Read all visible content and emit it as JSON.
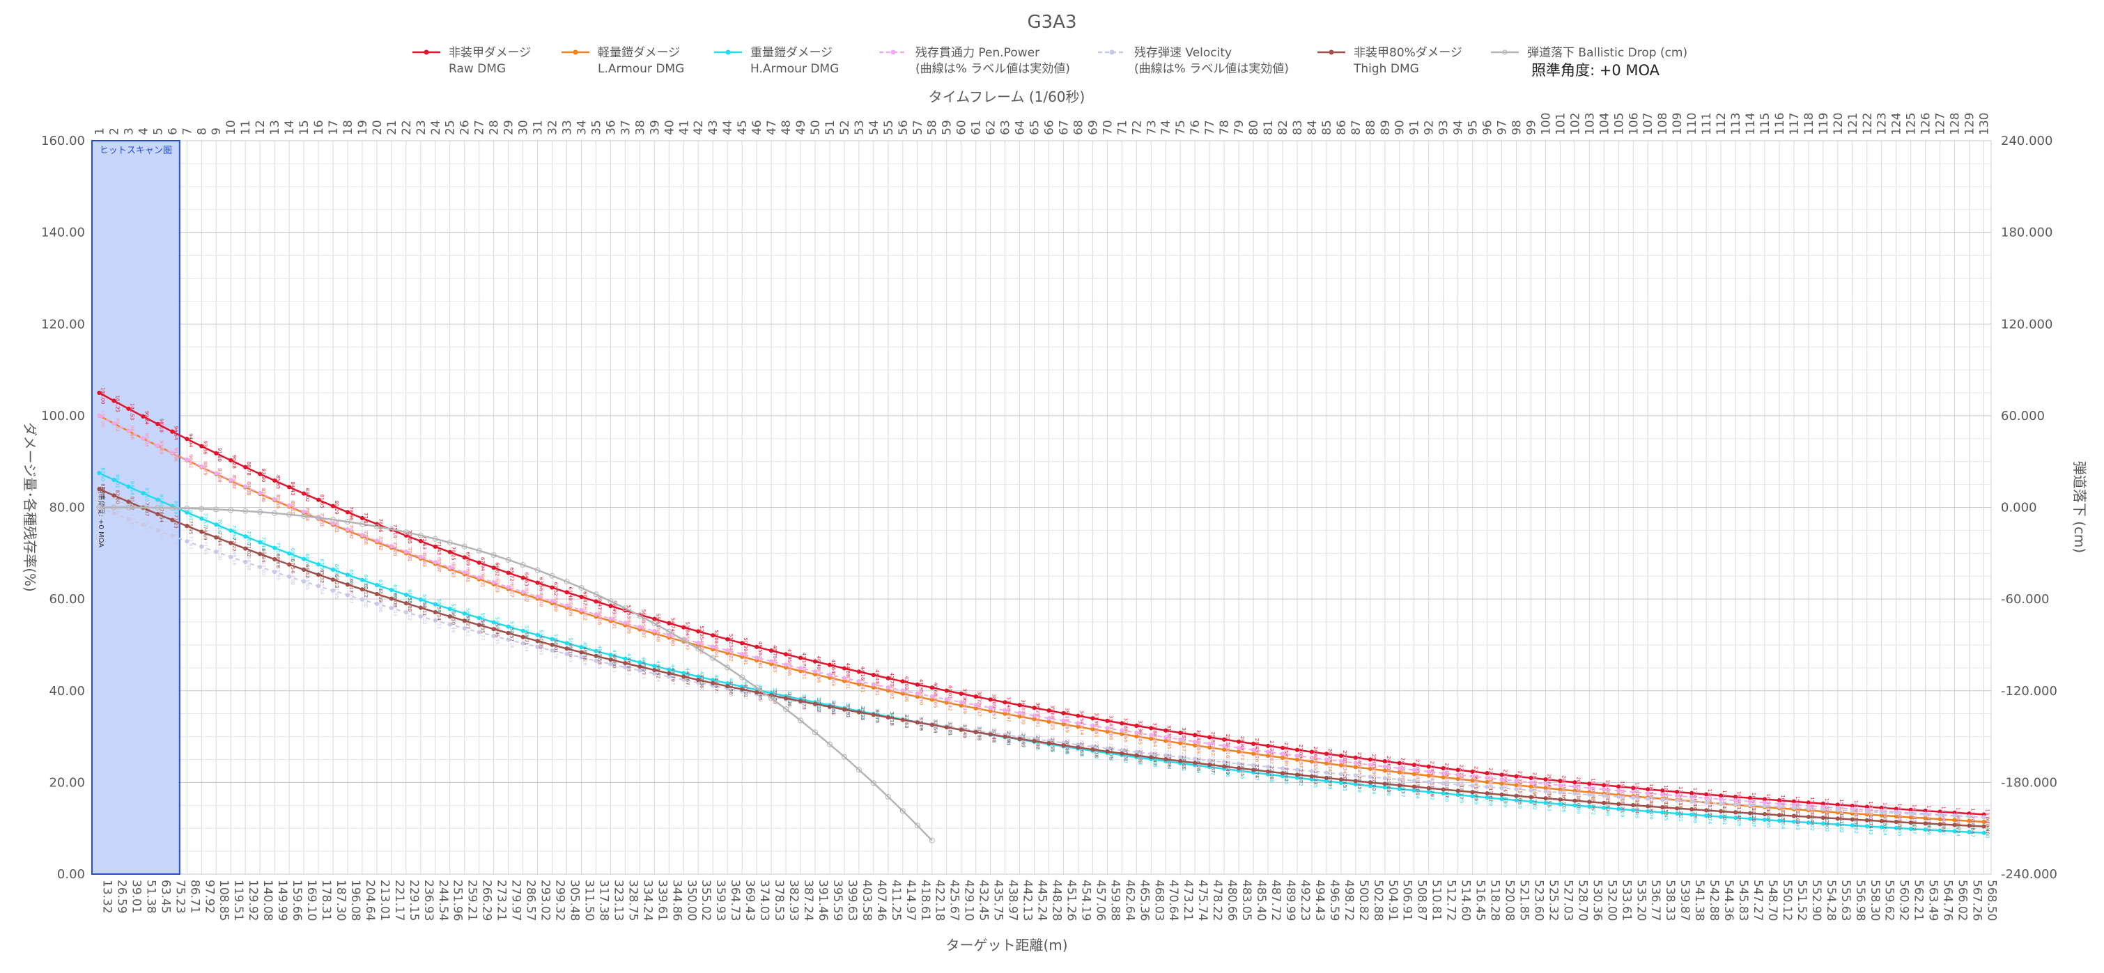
{
  "chart_data": {
    "type": "line",
    "title": "G3A3",
    "aim_text": "照準角度: +0 MOA",
    "aim_text_vertical": "照準角度: +0 MOA",
    "x_top_label": "タイムフレーム (1/60秒)",
    "x_bottom_label": "ターゲット距離(m)",
    "y_left_label": "ダメージ量･各種残存率(%)",
    "y_right_label": "弾道落下 (cm)",
    "hitscan_label": "ヒットスキャン圏",
    "hitscan_frames": [
      1,
      6
    ],
    "frames": {
      "start": 1,
      "end": 130
    },
    "distance_ticks": [
      "13.32",
      "26.59",
      "39.01",
      "51.38",
      "63.45",
      "75.23",
      "86.71",
      "97.92",
      "108.85",
      "119.51",
      "129.92",
      "140.08",
      "149.99",
      "159.66",
      "169.10",
      "178.31",
      "187.30",
      "196.08",
      "204.64",
      "213.01",
      "221.17",
      "229.15",
      "236.93",
      "244.54",
      "251.96",
      "259.21",
      "266.29",
      "273.21",
      "279.97",
      "286.57",
      "293.02",
      "299.32",
      "305.48",
      "311.50",
      "317.38",
      "323.13",
      "328.75",
      "334.24",
      "339.61",
      "344.86",
      "350.00",
      "355.02",
      "359.93",
      "364.73",
      "369.43",
      "374.03",
      "378.53",
      "382.93",
      "387.24",
      "391.46",
      "395.59",
      "399.63",
      "403.58",
      "407.46",
      "411.25",
      "414.97",
      "418.61",
      "422.18",
      "425.67",
      "429.10",
      "432.45",
      "435.75",
      "438.97",
      "442.13",
      "445.24",
      "448.28",
      "451.26",
      "454.19",
      "457.06",
      "459.88",
      "462.64",
      "465.36",
      "468.03",
      "470.64",
      "473.21",
      "475.74",
      "478.22",
      "480.66",
      "483.05",
      "485.40",
      "487.72",
      "489.99",
      "492.23",
      "494.43",
      "496.59",
      "498.72",
      "500.82",
      "502.88",
      "504.91",
      "506.91",
      "508.87",
      "510.81",
      "512.72",
      "514.60",
      "516.45",
      "518.28",
      "520.08",
      "521.85",
      "523.60",
      "525.32",
      "527.03",
      "528.70",
      "530.36",
      "532.00",
      "533.61",
      "535.20",
      "536.77",
      "538.33",
      "539.87",
      "541.38",
      "542.88",
      "544.36",
      "545.83",
      "547.27",
      "548.70",
      "550.12",
      "551.52",
      "552.90",
      "554.28",
      "555.63",
      "556.98",
      "558.30",
      "559.62",
      "560.92",
      "562.21",
      "563.49",
      "564.76",
      "566.02",
      "567.26",
      "568.50"
    ],
    "y_left": {
      "min": 0,
      "max": 160,
      "step": 20,
      "ticks": [
        "0.00",
        "20.00",
        "40.00",
        "60.00",
        "80.00",
        "100.00",
        "120.00",
        "140.00",
        "160.00"
      ]
    },
    "y_right": {
      "min": -240,
      "max": 240,
      "step": 60,
      "ticks": [
        "-240.000",
        "-180.000",
        "-120.000",
        "-60.000",
        "0.000",
        "60.000",
        "120.000",
        "180.000",
        "240.000"
      ]
    },
    "grid": true,
    "legend_position": "top",
    "series": [
      {
        "key": "raw",
        "name": "非装甲ダメージ",
        "name2": "Raw DMG",
        "color": "#e3122b",
        "start": 105.0,
        "end": 13.0
      },
      {
        "key": "light",
        "name": "軽量鎧ダメージ",
        "name2": "L.Armour DMG",
        "color": "#f0821e",
        "start": 100.0,
        "end": 11.4
      },
      {
        "key": "heavy",
        "name": "重量鎧ダメージ",
        "name2": "H.Armour DMG",
        "color": "#21dcef",
        "start": 87.5,
        "end": 9.0
      },
      {
        "key": "pen",
        "name": "残存貫通力 Pen.Power",
        "name2": "(曲線は% ラベル値は実効値)",
        "color": "#f0a8f0",
        "start": 100.0,
        "end": 12.4
      },
      {
        "key": "vel",
        "name": "残存弾速 Velocity",
        "name2": "(曲線は% ラベル値は実効値)",
        "color": "#c8c8e6",
        "start": 80.0,
        "end": 12.4
      },
      {
        "key": "thigh",
        "name": "非装甲80%ダメージ",
        "name2": "Thigh DMG",
        "color": "#a0504a",
        "start": 84.0,
        "end": 10.4
      },
      {
        "key": "drop",
        "name": "弾道落下 Ballistic Drop (cm)",
        "name2": "",
        "color": "#b4b4b4",
        "start": 0.0,
        "end": -218.0,
        "end_frame": 58
      }
    ]
  },
  "colors": {
    "hitscan_fill": "#c9d6fb",
    "hitscan_border": "#1f4fd8",
    "grid": "#d9d9d9",
    "axis_text": "#595959"
  }
}
